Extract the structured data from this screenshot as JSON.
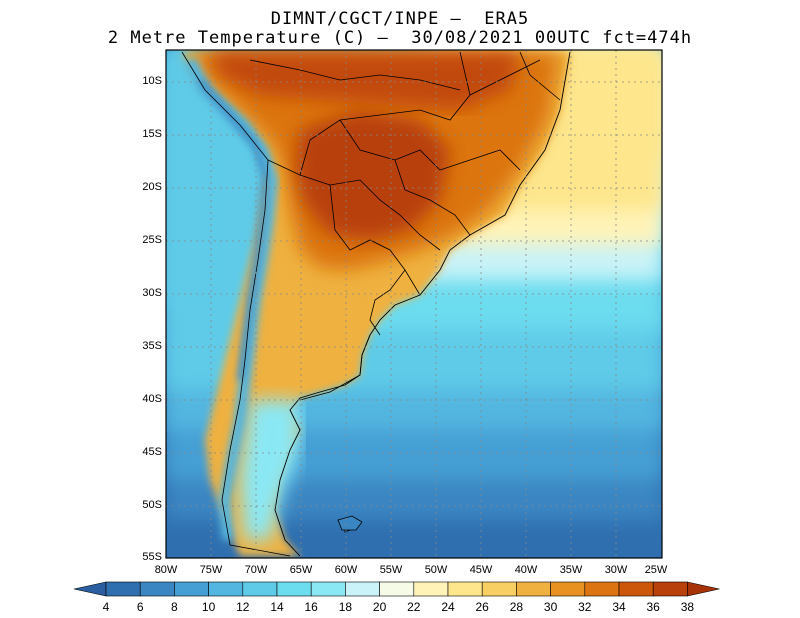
{
  "title_line1": "DIMNT/CGCT/INPE –  ERA5",
  "title_line2": "2 Metre Temperature (C) –  30/08/2021 00UTC fct=474h",
  "lat_labels": [
    "10S",
    "15S",
    "20S",
    "25S",
    "30S",
    "35S",
    "40S",
    "45S",
    "50S",
    "55S"
  ],
  "lon_labels": [
    "80W",
    "75W",
    "70W",
    "65W",
    "60W",
    "55W",
    "50W",
    "45W",
    "40W",
    "35W",
    "30W",
    "25W"
  ],
  "colorbar": {
    "labels": [
      "4",
      "6",
      "8",
      "10",
      "12",
      "14",
      "16",
      "18",
      "20",
      "22",
      "24",
      "26",
      "28",
      "30",
      "32",
      "34",
      "36",
      "38"
    ],
    "colors": [
      "#2f6fb0",
      "#3a86c2",
      "#459fd4",
      "#52b6e0",
      "#5fcbe8",
      "#6cdcef",
      "#8ae8f5",
      "#c9f3f8",
      "#f5fbe6",
      "#fff3b8",
      "#fde68c",
      "#f8cf63",
      "#efb13f",
      "#e79221",
      "#dc7411",
      "#cc560a",
      "#b8400a"
    ],
    "arrow_left_color": "#2a5ea0",
    "arrow_right_color": "#a83208"
  },
  "map_colors": {
    "ocean_deep": "#2f6fb0",
    "ocean_mid": "#459fd4",
    "ocean_warm": "#6cdcef",
    "ocean_subtropical": "#c9f3f8",
    "ocean_tropical": "#fde68c",
    "land_hot": "#b8400a",
    "land_warm": "#dc7411",
    "land_mild": "#efb13f",
    "andes": "#52b6e0"
  }
}
